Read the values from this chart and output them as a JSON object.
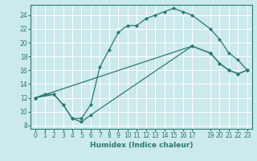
{
  "xlabel": "Humidex (Indice chaleur)",
  "background_color": "#cce9ec",
  "grid_color": "#ffffff",
  "line_color": "#2a7a6e",
  "xlim": [
    -0.5,
    23.5
  ],
  "ylim": [
    7.5,
    25.5
  ],
  "xtick_vals": [
    0,
    1,
    2,
    3,
    4,
    5,
    6,
    7,
    8,
    9,
    10,
    11,
    12,
    13,
    14,
    15,
    16,
    17,
    19,
    20,
    21,
    22,
    23
  ],
  "xtick_labels": [
    "0",
    "1",
    "2",
    "3",
    "4",
    "5",
    "6",
    "7",
    "8",
    "9",
    "10",
    "11",
    "12",
    "13",
    "14",
    "15",
    "16",
    "17",
    "19",
    "20",
    "21",
    "22",
    "23"
  ],
  "yticks": [
    8,
    10,
    12,
    14,
    16,
    18,
    20,
    22,
    24
  ],
  "line1_x": [
    0,
    1,
    2,
    3,
    4,
    5,
    6,
    7,
    8,
    9,
    10,
    11,
    12,
    13,
    14,
    15,
    16,
    17,
    19,
    20,
    21,
    22,
    23
  ],
  "line1_y": [
    12,
    12.5,
    12.5,
    11,
    9,
    9,
    11,
    16.5,
    19,
    21.5,
    22.5,
    22.5,
    23.5,
    24,
    24.5,
    25,
    24.5,
    24,
    22,
    20.5,
    18.5,
    17.5,
    16
  ],
  "line2_x": [
    0,
    2,
    3,
    4,
    5,
    6,
    17,
    19,
    20,
    21,
    22,
    23
  ],
  "line2_y": [
    12,
    12.5,
    11,
    9,
    8.5,
    9.5,
    19.5,
    18.5,
    17,
    16,
    15.5,
    16
  ],
  "line3_x": [
    0,
    17,
    19,
    20,
    21,
    22,
    23
  ],
  "line3_y": [
    12,
    19.5,
    18.5,
    17,
    16,
    15.5,
    16
  ]
}
